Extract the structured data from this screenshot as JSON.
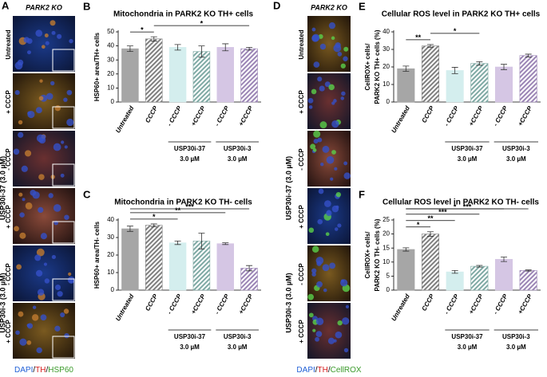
{
  "panels": [
    {
      "letter": "A",
      "header": "PARK2 KO",
      "rows": [
        "Untreated",
        "+ CCCP",
        "- CCCP",
        "+ CCCP",
        "- CCCP",
        "+ CCCP"
      ],
      "groups": [
        "USP30i-37 (3.0 µM)",
        "USP30i-3 (3.0 µM)"
      ],
      "legend": [
        "DAPI",
        "/",
        "TH",
        "/",
        "HSP60"
      ]
    },
    {
      "letter": "D",
      "header": "PARK2 KO",
      "rows": [
        "Untreated",
        "+ CCCP",
        "- CCCP",
        "+ CCCP",
        "- CCCP",
        "+ CCCP"
      ],
      "groups": [
        "USP30i-37 (3.0 µM)",
        "USP30i-3 (3.0 µM)"
      ],
      "legend": [
        "DAPI",
        "/",
        "TH",
        "/",
        "CellROX"
      ]
    }
  ],
  "chart_data": [
    {
      "type": "bar",
      "letter": "B",
      "title": "Mitochondria in PARK2 KO TH+ cells",
      "ylabel": [
        "HSP60+ area/TH+ cells"
      ],
      "categories": [
        "Untreated",
        "CCCP",
        "- CCCP",
        "+CCCP",
        "- CCCP",
        "+CCCP"
      ],
      "values": [
        38,
        45,
        39,
        36,
        39,
        38
      ],
      "errors": [
        2,
        1.5,
        2,
        4,
        2.5,
        1
      ],
      "colors": [
        "#a6a6a6",
        "#7f7f7f",
        "#d4eeee",
        "#7fa9a4",
        "#d5c6e4",
        "#9b85b5"
      ],
      "hatched": [
        false,
        true,
        false,
        true,
        false,
        true
      ],
      "groups": [
        [
          "USP30i-37",
          "3.0 µM"
        ],
        [
          "USP30i-3",
          "3.0 µM"
        ]
      ],
      "significance": [
        "*",
        "*"
      ],
      "ylim": [
        0,
        50
      ],
      "yticks": [
        0,
        10,
        20,
        30,
        40,
        50
      ]
    },
    {
      "type": "bar",
      "letter": "C",
      "title": "Mitochondria in PARK2 KO TH- cells",
      "ylabel": [
        "HSP60+ area/TH- cells"
      ],
      "categories": [
        "Untreated",
        "CCCP",
        "- CCCP",
        "+CCCP",
        "- CCCP",
        "+CCCP"
      ],
      "values": [
        35,
        37,
        27,
        28,
        26.5,
        12.5
      ],
      "errors": [
        1.5,
        0.8,
        1,
        4.5,
        0.5,
        1.5
      ],
      "colors": [
        "#a6a6a6",
        "#7f7f7f",
        "#d4eeee",
        "#7fa9a4",
        "#d5c6e4",
        "#9b85b5"
      ],
      "hatched": [
        false,
        true,
        false,
        true,
        false,
        true
      ],
      "groups": [
        [
          "USP30i-37",
          "3.0 µM"
        ],
        [
          "USP30i-3",
          "3.0 µM"
        ]
      ],
      "significance": [
        "*",
        "**",
        "***"
      ],
      "ylim": [
        0,
        40
      ],
      "yticks": [
        0,
        10,
        20,
        30,
        40
      ]
    },
    {
      "type": "bar",
      "letter": "E",
      "title": "Cellular ROS level in PARK2 KO TH+ cells",
      "ylabel": [
        "CellROX+ cells/",
        "PARK2 KO TH+ cells (%)"
      ],
      "categories": [
        "Untreated",
        "CCCP",
        "- CCCP",
        "+CCCP",
        "- CCCP",
        "+CCCP"
      ],
      "values": [
        19,
        32,
        18,
        22,
        20,
        26.5
      ],
      "errors": [
        1.5,
        0.8,
        1.8,
        1,
        1.5,
        0.8
      ],
      "colors": [
        "#a6a6a6",
        "#7f7f7f",
        "#d4eeee",
        "#7fa9a4",
        "#d5c6e4",
        "#9b85b5"
      ],
      "hatched": [
        false,
        true,
        false,
        true,
        false,
        true
      ],
      "groups": [
        [
          "USP30i-37",
          "3.0 µM"
        ],
        [
          "USP30i-3",
          "3.0 µM"
        ]
      ],
      "significance": [
        "**",
        "*"
      ],
      "ylim": [
        0,
        40
      ],
      "yticks": [
        0,
        10,
        20,
        30,
        40
      ]
    },
    {
      "type": "bar",
      "letter": "F",
      "title": "Cellular ROS level in PARK2 KO TH- cells",
      "ylabel": [
        "CellROX+ cells/",
        "PARK2 KO TH- cells (%)"
      ],
      "categories": [
        "Untreated",
        "CCCP",
        "- CCCP",
        "+CCCP",
        "- CCCP",
        "+CCCP"
      ],
      "values": [
        14.5,
        20,
        6.5,
        8.5,
        11,
        7
      ],
      "errors": [
        0.6,
        0.8,
        0.5,
        0.3,
        0.8,
        0.2
      ],
      "colors": [
        "#a6a6a6",
        "#7f7f7f",
        "#d4eeee",
        "#7fa9a4",
        "#d5c6e4",
        "#9b85b5"
      ],
      "hatched": [
        false,
        true,
        false,
        true,
        false,
        true
      ],
      "groups": [
        [
          "USP30i-37",
          "3.0 µM"
        ],
        [
          "USP30i-3",
          "3.0 µM"
        ]
      ],
      "significance": [
        "*",
        "**",
        "***",
        "*",
        "***"
      ],
      "ylim": [
        0,
        25
      ],
      "yticks": [
        0,
        5,
        10,
        15,
        20,
        25
      ]
    }
  ]
}
